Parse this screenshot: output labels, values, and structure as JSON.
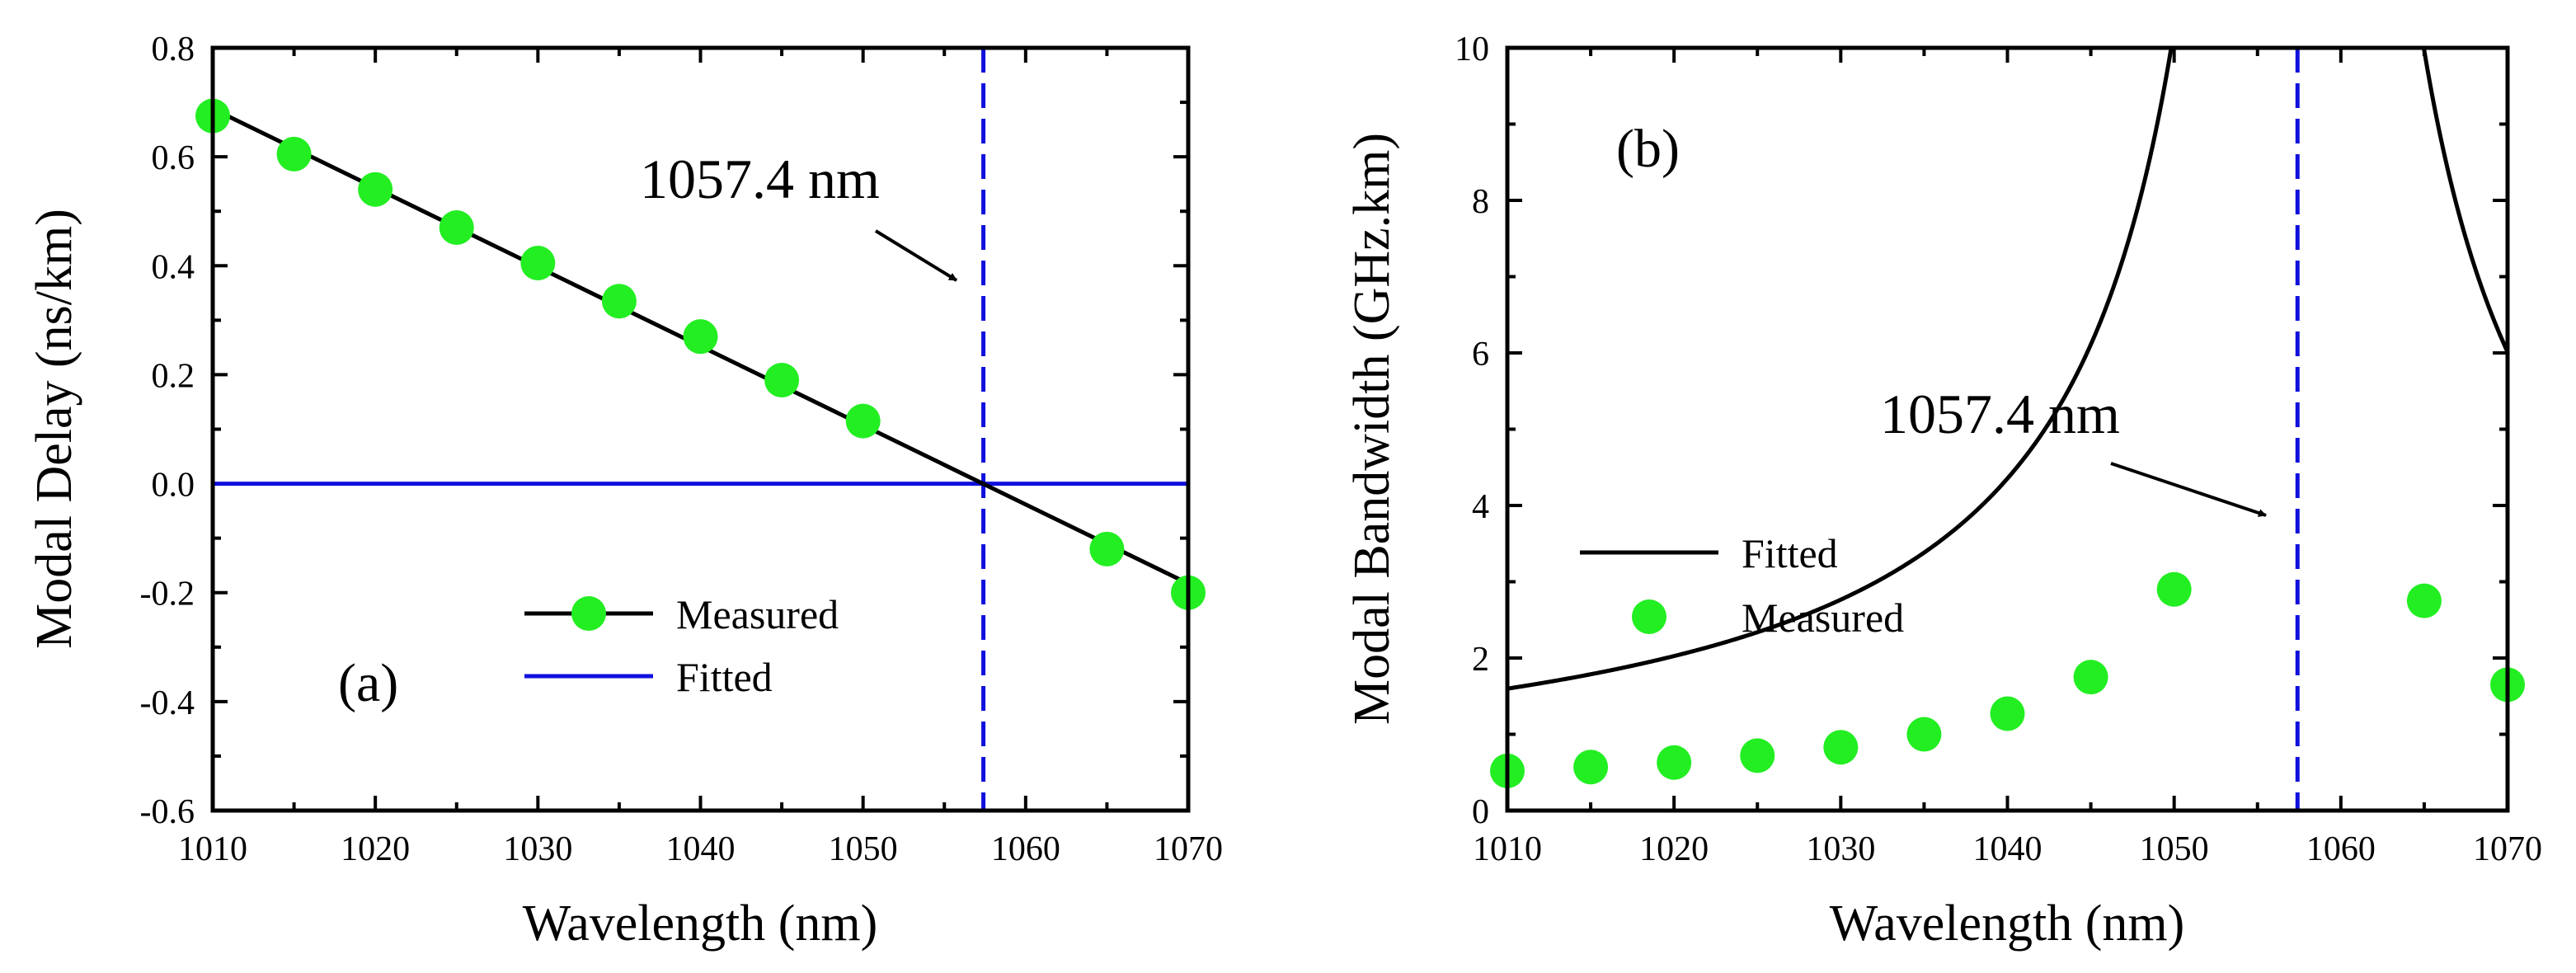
{
  "colors": {
    "measured": "#22ee22",
    "fitted_a": "#1010dd",
    "fitted_b": "#000000",
    "dashed": "#1010dd",
    "axis": "#000000"
  },
  "chart_data": [
    {
      "id": "a",
      "type": "line",
      "panel_label": "(a)",
      "xlabel": "Wavelength (nm)",
      "ylabel": "Modal Delay (ns/km)",
      "xlim": [
        1010,
        1070
      ],
      "ylim": [
        -0.6,
        0.8
      ],
      "xticks": [
        1010,
        1020,
        1030,
        1040,
        1050,
        1060,
        1070
      ],
      "xtick_labels": [
        "1010",
        "1020",
        "1030",
        "1040",
        "1050",
        "1060",
        "1070"
      ],
      "yticks": [
        -0.6,
        -0.4,
        -0.2,
        0.0,
        0.2,
        0.4,
        0.6,
        0.8
      ],
      "ytick_labels": [
        "-0.6",
        "-0.4",
        "-0.2",
        "0.0",
        "0.2",
        "0.4",
        "0.6",
        "0.8"
      ],
      "series": [
        {
          "name": "Measured",
          "style": "line-marker",
          "x": [
            1010,
            1015,
            1020,
            1025,
            1030,
            1035,
            1040,
            1045,
            1050,
            1065,
            1070
          ],
          "values": [
            0.675,
            0.605,
            0.54,
            0.47,
            0.405,
            0.335,
            0.27,
            0.19,
            0.115,
            -0.12,
            -0.2
          ]
        },
        {
          "name": "Fitted",
          "style": "line",
          "x": [
            1010,
            1070
          ],
          "values": [
            0.0,
            0.0
          ]
        }
      ],
      "vline": 1057.4,
      "annotation": "1057.4 nm",
      "legend": [
        "Measured",
        "Fitted"
      ]
    },
    {
      "id": "b",
      "type": "line",
      "panel_label": "(b)",
      "xlabel": "Wavelength (nm)",
      "ylabel": "Modal Bandwidth (GHz.km)",
      "xlim": [
        1010,
        1070
      ],
      "ylim": [
        0,
        10
      ],
      "xticks": [
        1010,
        1020,
        1030,
        1040,
        1050,
        1060,
        1070
      ],
      "xtick_labels": [
        "1010",
        "1020",
        "1030",
        "1040",
        "1050",
        "1060",
        "1070"
      ],
      "yticks": [
        0,
        2,
        4,
        6,
        8,
        10
      ],
      "ytick_labels": [
        "0",
        "2",
        "4",
        "6",
        "8",
        "10"
      ],
      "series": [
        {
          "name": "Fitted",
          "style": "line",
          "model": "B = 1 / (0.0132 * |lambda - 1057.4|)",
          "center": 1057.4,
          "k": 0.0132
        },
        {
          "name": "Measured",
          "style": "marker",
          "x": [
            1010,
            1015,
            1020,
            1025,
            1030,
            1035,
            1040,
            1045,
            1050,
            1065,
            1070
          ],
          "values": [
            0.52,
            0.57,
            0.63,
            0.72,
            0.83,
            1.0,
            1.27,
            1.75,
            2.9,
            2.75,
            1.65
          ]
        }
      ],
      "vline": 1057.4,
      "annotation": "1057.4 nm",
      "legend": [
        "Fitted",
        "Measured"
      ]
    }
  ]
}
